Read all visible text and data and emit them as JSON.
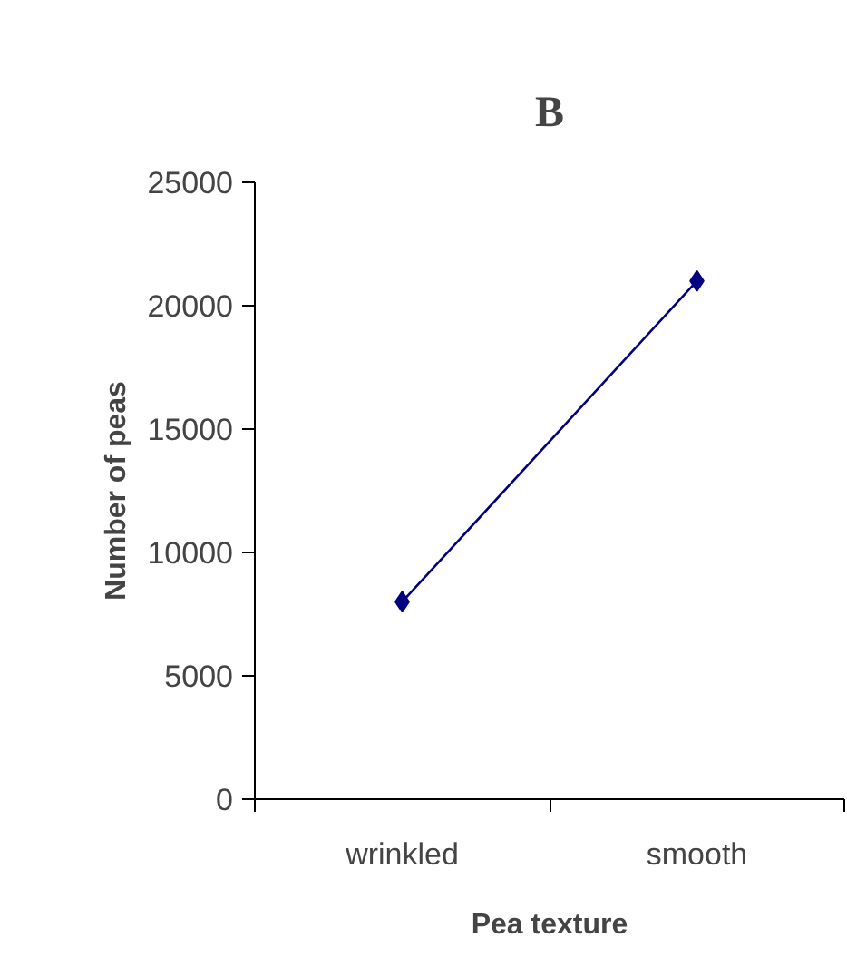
{
  "chart_data": {
    "type": "line",
    "title": "B",
    "xlabel": "Pea texture",
    "ylabel": "Number of peas",
    "categories": [
      "wrinkled",
      "smooth"
    ],
    "series": [
      {
        "color": "#000080",
        "values": [
          8000,
          21000
        ]
      }
    ],
    "ylim": [
      0,
      25000
    ],
    "yticks": [
      0,
      5000,
      10000,
      15000,
      20000,
      25000
    ],
    "grid": false,
    "marker": "diamond",
    "line_style": "solid"
  }
}
